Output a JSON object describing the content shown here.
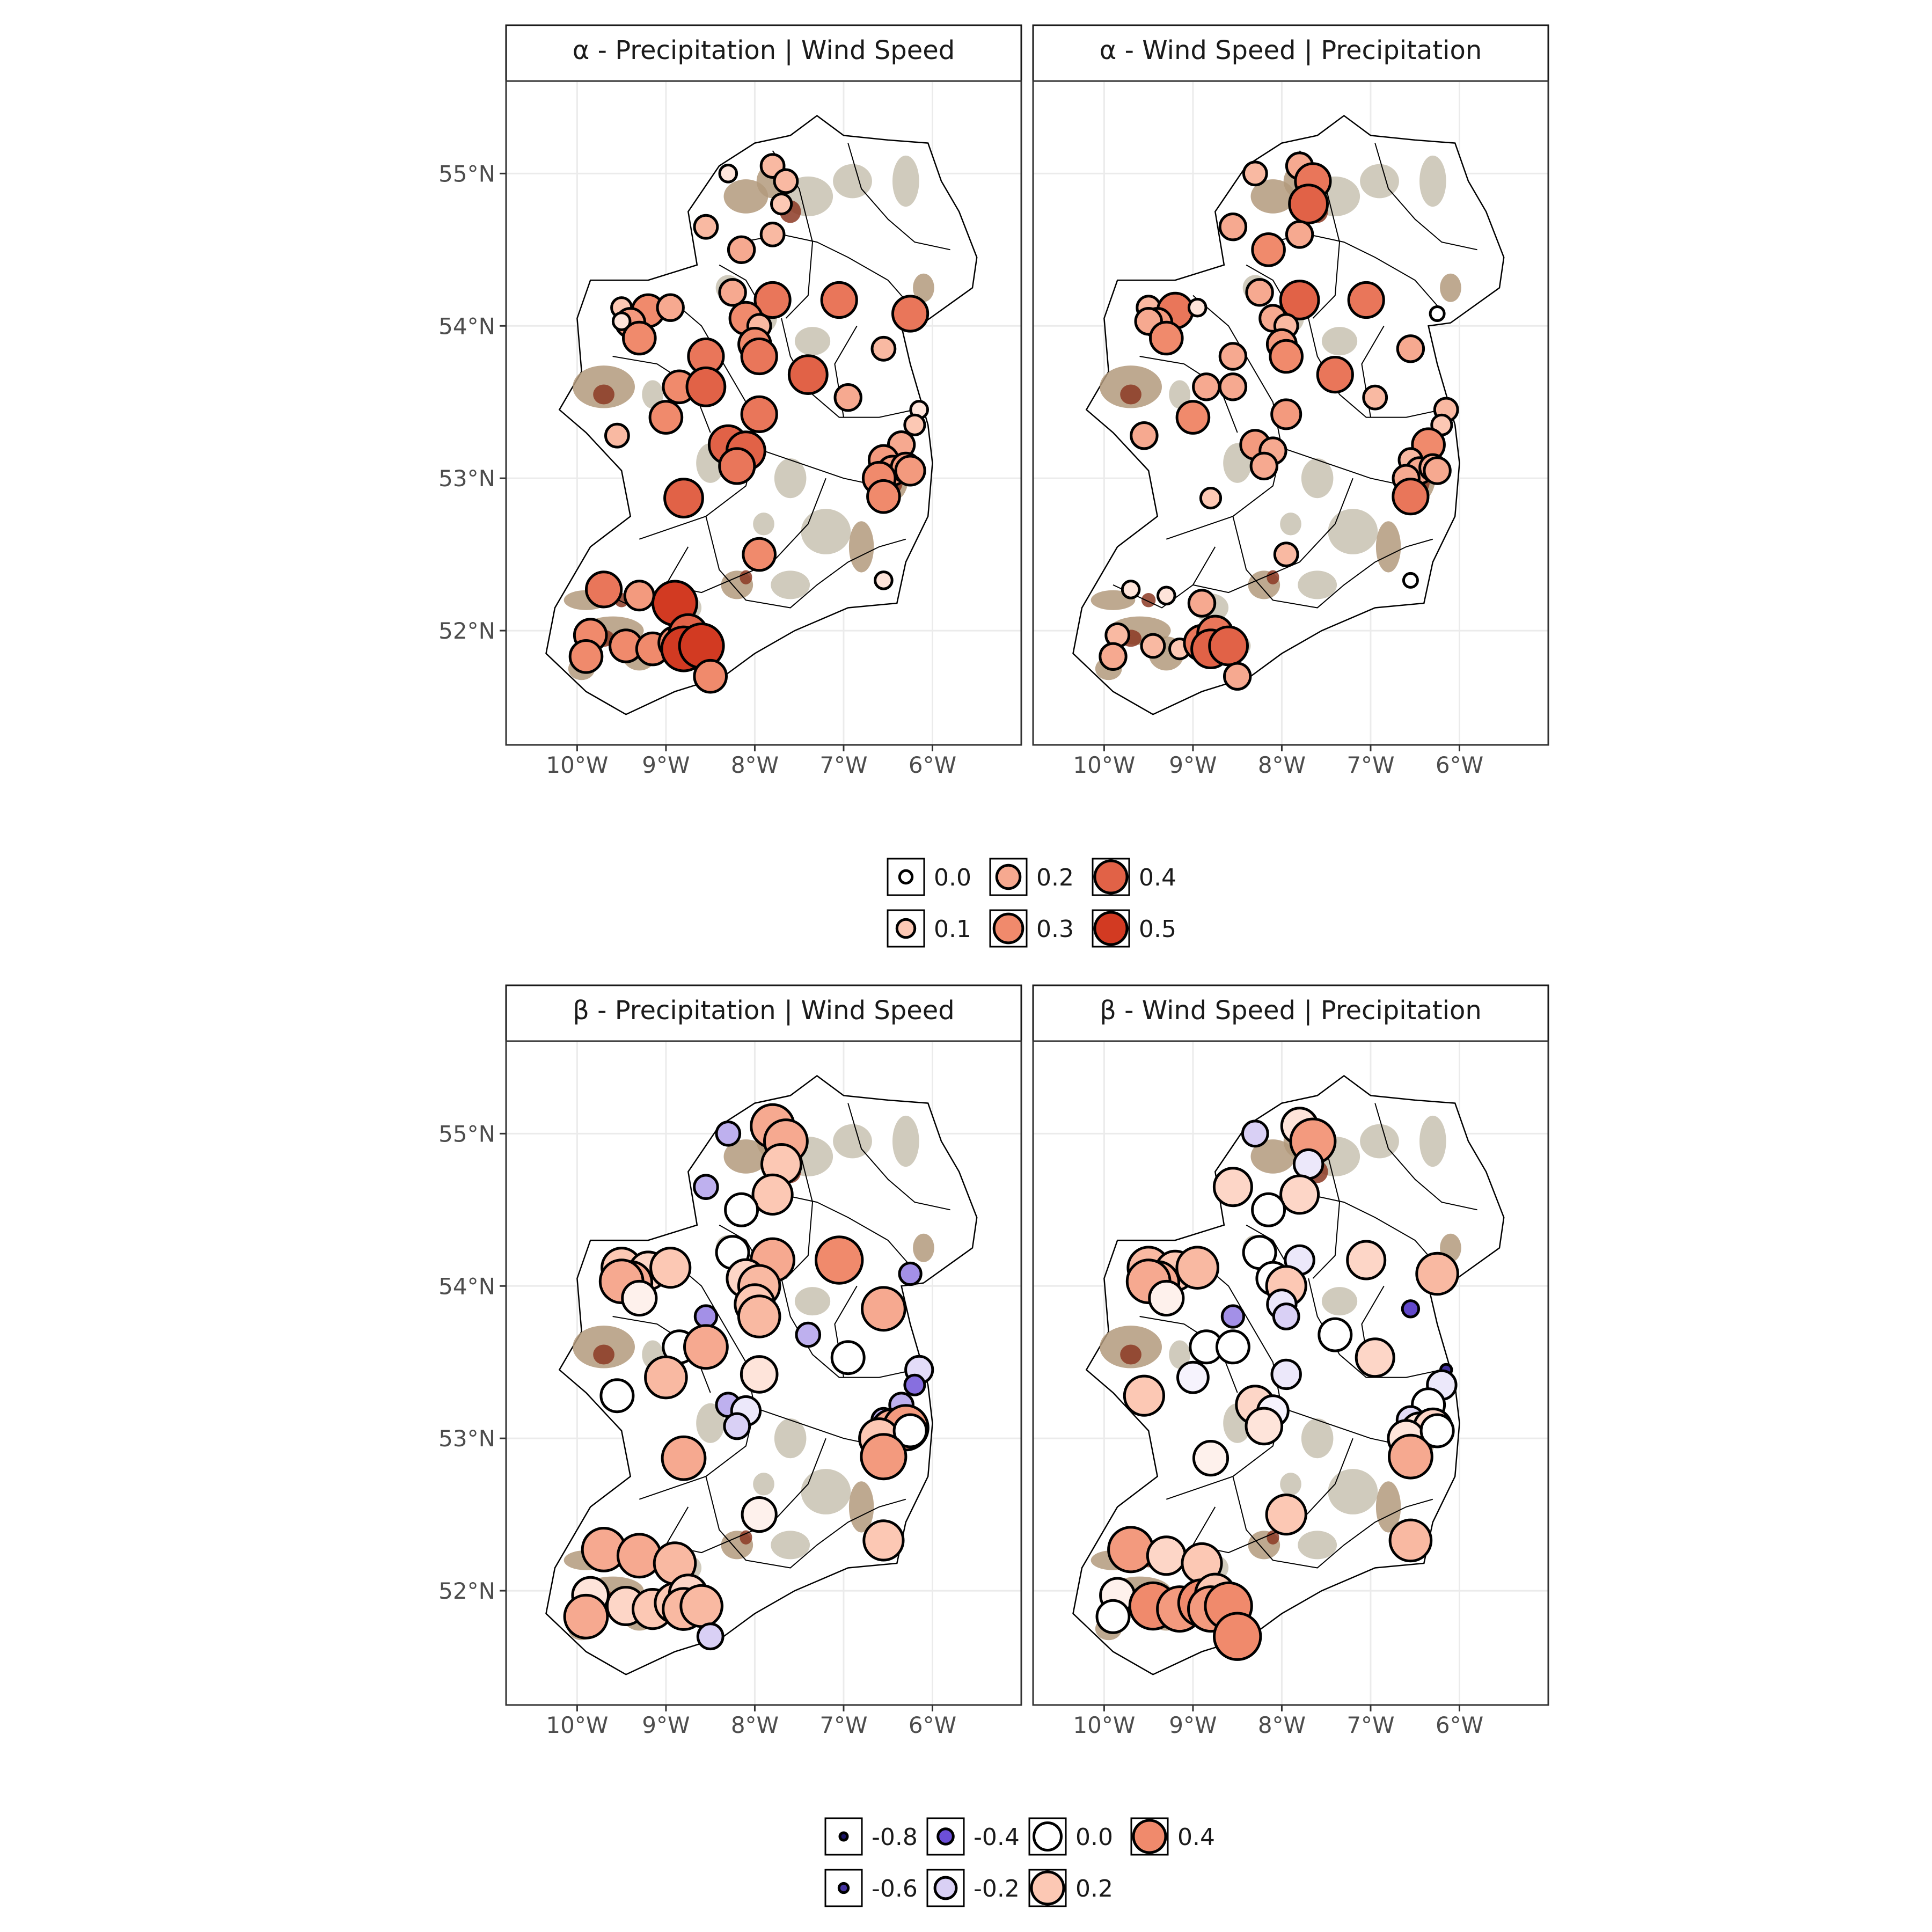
{
  "colors": {
    "neg_deep": "#1a1466",
    "neg_mid": "#6c4fd8",
    "neg_light": "#d9d0f5",
    "white": "#ffffff",
    "pos_light": "#fcc8b4",
    "pos_mid": "#f08a6c",
    "pos_deep": "#d23a22",
    "terrain_low": "#c8c2b2",
    "terrain_mid": "#b39a7c",
    "terrain_high": "#8c3a24",
    "grid": "#ebebeb",
    "outline": "#000000"
  },
  "x_ticks": [
    "10°W",
    "9°W",
    "8°W",
    "7°W",
    "6°W"
  ],
  "y_ticks": [
    "55°N",
    "54°N",
    "53°N",
    "52°N"
  ],
  "legend_alpha": {
    "labels": [
      "0.0",
      "0.1",
      "0.2",
      "0.3",
      "0.4",
      "0.5"
    ],
    "values": [
      0.0,
      0.1,
      0.2,
      0.3,
      0.4,
      0.5
    ]
  },
  "legend_beta": {
    "labels": [
      "-0.8",
      "-0.6",
      "-0.4",
      "-0.2",
      "0.0",
      "0.2",
      "0.4"
    ],
    "values": [
      -0.8,
      -0.6,
      -0.4,
      -0.2,
      0.0,
      0.2,
      0.4
    ]
  },
  "chart_data": [
    {
      "type": "scatter",
      "title": "α -  Precipitation | Wind Speed",
      "xlim": [
        -10.8,
        -5.0
      ],
      "ylim": [
        51.25,
        55.6
      ],
      "points": [
        [
          -8.3,
          55.0,
          0.05
        ],
        [
          -7.8,
          55.05,
          0.15
        ],
        [
          -7.65,
          54.95,
          0.15
        ],
        [
          -7.7,
          54.8,
          0.1
        ],
        [
          -8.55,
          54.65,
          0.15
        ],
        [
          -7.8,
          54.6,
          0.15
        ],
        [
          -8.15,
          54.5,
          0.2
        ],
        [
          -8.25,
          54.22,
          0.2
        ],
        [
          -7.8,
          54.17,
          0.35
        ],
        [
          -7.05,
          54.17,
          0.35
        ],
        [
          -6.25,
          54.08,
          0.35
        ],
        [
          -9.5,
          54.12,
          0.1
        ],
        [
          -9.2,
          54.1,
          0.3
        ],
        [
          -8.95,
          54.12,
          0.2
        ],
        [
          -9.4,
          54.02,
          0.25
        ],
        [
          -9.5,
          54.03,
          0.05
        ],
        [
          -9.3,
          53.92,
          0.3
        ],
        [
          -8.1,
          54.05,
          0.3
        ],
        [
          -7.95,
          54.0,
          0.15
        ],
        [
          -8.0,
          53.88,
          0.3
        ],
        [
          -7.95,
          53.8,
          0.35
        ],
        [
          -8.55,
          53.8,
          0.35
        ],
        [
          -6.55,
          53.85,
          0.15
        ],
        [
          -7.4,
          53.68,
          0.4
        ],
        [
          -8.85,
          53.6,
          0.3
        ],
        [
          -8.55,
          53.6,
          0.4
        ],
        [
          -6.95,
          53.53,
          0.2
        ],
        [
          -6.15,
          53.45,
          0.05
        ],
        [
          -7.95,
          53.42,
          0.35
        ],
        [
          -9.0,
          53.4,
          0.3
        ],
        [
          -6.2,
          53.35,
          0.1
        ],
        [
          -9.55,
          53.28,
          0.15
        ],
        [
          -8.3,
          53.22,
          0.4
        ],
        [
          -8.1,
          53.18,
          0.4
        ],
        [
          -6.35,
          53.22,
          0.2
        ],
        [
          -8.2,
          53.08,
          0.35
        ],
        [
          -6.55,
          53.12,
          0.25
        ],
        [
          -6.45,
          53.05,
          0.25
        ],
        [
          -6.3,
          53.07,
          0.25
        ],
        [
          -6.6,
          53.0,
          0.3
        ],
        [
          -6.25,
          53.05,
          0.25
        ],
        [
          -6.55,
          52.88,
          0.3
        ],
        [
          -8.8,
          52.87,
          0.4
        ],
        [
          -7.95,
          52.5,
          0.3
        ],
        [
          -6.55,
          52.33,
          0.05
        ],
        [
          -9.7,
          52.27,
          0.35
        ],
        [
          -9.3,
          52.23,
          0.25
        ],
        [
          -8.9,
          52.18,
          0.5
        ],
        [
          -9.85,
          51.97,
          0.3
        ],
        [
          -9.45,
          51.9,
          0.3
        ],
        [
          -9.15,
          51.88,
          0.3
        ],
        [
          -8.9,
          51.92,
          0.3
        ],
        [
          -8.75,
          51.98,
          0.4
        ],
        [
          -8.8,
          51.88,
          0.5
        ],
        [
          -8.6,
          51.9,
          0.5
        ],
        [
          -9.9,
          51.83,
          0.3
        ],
        [
          -8.5,
          51.7,
          0.3
        ]
      ]
    },
    {
      "type": "scatter",
      "title": "α -  Wind Speed | Precipitation",
      "xlim": [
        -10.8,
        -5.0
      ],
      "ylim": [
        51.25,
        55.6
      ],
      "points": [
        [
          -8.3,
          55.0,
          0.15
        ],
        [
          -7.8,
          55.05,
          0.2
        ],
        [
          -7.65,
          54.95,
          0.35
        ],
        [
          -7.7,
          54.8,
          0.4
        ],
        [
          -8.55,
          54.65,
          0.2
        ],
        [
          -7.8,
          54.6,
          0.2
        ],
        [
          -8.15,
          54.5,
          0.3
        ],
        [
          -8.25,
          54.22,
          0.2
        ],
        [
          -7.8,
          54.17,
          0.4
        ],
        [
          -7.05,
          54.17,
          0.35
        ],
        [
          -6.25,
          54.08,
          0.0
        ],
        [
          -9.5,
          54.12,
          0.15
        ],
        [
          -9.2,
          54.1,
          0.35
        ],
        [
          -8.95,
          54.12,
          0.05
        ],
        [
          -9.4,
          54.02,
          0.25
        ],
        [
          -9.5,
          54.03,
          0.2
        ],
        [
          -9.3,
          53.92,
          0.3
        ],
        [
          -8.1,
          54.05,
          0.2
        ],
        [
          -7.95,
          54.0,
          0.15
        ],
        [
          -8.0,
          53.88,
          0.25
        ],
        [
          -7.95,
          53.8,
          0.3
        ],
        [
          -8.55,
          53.8,
          0.2
        ],
        [
          -6.55,
          53.85,
          0.2
        ],
        [
          -7.4,
          53.68,
          0.35
        ],
        [
          -8.85,
          53.6,
          0.2
        ],
        [
          -8.55,
          53.6,
          0.2
        ],
        [
          -6.95,
          53.53,
          0.15
        ],
        [
          -6.15,
          53.45,
          0.15
        ],
        [
          -7.95,
          53.42,
          0.25
        ],
        [
          -9.0,
          53.4,
          0.3
        ],
        [
          -6.2,
          53.35,
          0.1
        ],
        [
          -9.55,
          53.28,
          0.2
        ],
        [
          -8.3,
          53.22,
          0.25
        ],
        [
          -8.1,
          53.18,
          0.2
        ],
        [
          -6.35,
          53.22,
          0.3
        ],
        [
          -8.2,
          53.08,
          0.2
        ],
        [
          -6.55,
          53.12,
          0.15
        ],
        [
          -6.45,
          53.05,
          0.2
        ],
        [
          -6.3,
          53.07,
          0.2
        ],
        [
          -6.6,
          53.0,
          0.2
        ],
        [
          -6.25,
          53.05,
          0.2
        ],
        [
          -6.55,
          52.88,
          0.35
        ],
        [
          -8.8,
          52.87,
          0.1
        ],
        [
          -7.95,
          52.5,
          0.15
        ],
        [
          -6.55,
          52.33,
          0.0
        ],
        [
          -9.7,
          52.27,
          0.05
        ],
        [
          -9.3,
          52.23,
          0.05
        ],
        [
          -8.9,
          52.18,
          0.2
        ],
        [
          -9.85,
          51.97,
          0.15
        ],
        [
          -9.45,
          51.9,
          0.15
        ],
        [
          -9.15,
          51.88,
          0.1
        ],
        [
          -8.9,
          51.92,
          0.35
        ],
        [
          -8.75,
          51.98,
          0.35
        ],
        [
          -8.8,
          51.88,
          0.4
        ],
        [
          -8.6,
          51.9,
          0.4
        ],
        [
          -9.9,
          51.83,
          0.2
        ],
        [
          -8.5,
          51.7,
          0.2
        ]
      ]
    },
    {
      "type": "scatter",
      "title": "β -  Precipitation | Wind Speed",
      "xlim": [
        -10.8,
        -5.0
      ],
      "ylim": [
        51.25,
        55.6
      ],
      "points": [
        [
          -8.3,
          55.0,
          -0.25
        ],
        [
          -7.8,
          55.05,
          0.3
        ],
        [
          -7.65,
          54.95,
          0.3
        ],
        [
          -7.7,
          54.8,
          0.2
        ],
        [
          -8.55,
          54.65,
          -0.25
        ],
        [
          -7.8,
          54.6,
          0.2
        ],
        [
          -8.15,
          54.5,
          0.0
        ],
        [
          -8.25,
          54.22,
          0.0
        ],
        [
          -7.8,
          54.17,
          0.3
        ],
        [
          -7.05,
          54.17,
          0.4
        ],
        [
          -6.25,
          54.08,
          -0.3
        ],
        [
          -9.5,
          54.12,
          0.2
        ],
        [
          -9.2,
          54.1,
          0.15
        ],
        [
          -8.95,
          54.12,
          0.2
        ],
        [
          -9.4,
          54.02,
          0.3
        ],
        [
          -9.5,
          54.03,
          0.3
        ],
        [
          -9.3,
          53.92,
          0.05
        ],
        [
          -8.1,
          54.05,
          0.15
        ],
        [
          -7.95,
          54.0,
          0.25
        ],
        [
          -8.0,
          53.88,
          0.2
        ],
        [
          -7.95,
          53.8,
          0.25
        ],
        [
          -8.55,
          53.8,
          -0.3
        ],
        [
          -6.55,
          53.85,
          0.3
        ],
        [
          -7.4,
          53.68,
          -0.25
        ],
        [
          -8.85,
          53.6,
          0.0
        ],
        [
          -8.55,
          53.6,
          0.3
        ],
        [
          -6.95,
          53.53,
          0.0
        ],
        [
          -6.15,
          53.45,
          -0.15
        ],
        [
          -7.95,
          53.42,
          0.1
        ],
        [
          -9.0,
          53.4,
          0.25
        ],
        [
          -6.2,
          53.35,
          -0.35
        ],
        [
          -9.55,
          53.28,
          0.0
        ],
        [
          -8.3,
          53.22,
          -0.25
        ],
        [
          -8.1,
          53.18,
          -0.1
        ],
        [
          -6.35,
          53.22,
          -0.25
        ],
        [
          -8.2,
          53.08,
          -0.2
        ],
        [
          -6.55,
          53.12,
          -0.25
        ],
        [
          -6.45,
          53.05,
          0.3
        ],
        [
          -6.3,
          53.07,
          0.35
        ],
        [
          -6.6,
          53.0,
          0.2
        ],
        [
          -6.25,
          53.05,
          0.0
        ],
        [
          -6.55,
          52.88,
          0.35
        ],
        [
          -8.8,
          52.87,
          0.3
        ],
        [
          -7.95,
          52.5,
          0.05
        ],
        [
          -6.55,
          52.33,
          0.2
        ],
        [
          -9.7,
          52.27,
          0.3
        ],
        [
          -9.3,
          52.23,
          0.3
        ],
        [
          -8.9,
          52.18,
          0.25
        ],
        [
          -9.85,
          51.97,
          0.1
        ],
        [
          -9.45,
          51.9,
          0.15
        ],
        [
          -9.15,
          51.88,
          0.2
        ],
        [
          -8.9,
          51.92,
          0.2
        ],
        [
          -8.75,
          51.98,
          0.15
        ],
        [
          -8.8,
          51.88,
          0.25
        ],
        [
          -8.6,
          51.9,
          0.25
        ],
        [
          -9.9,
          51.83,
          0.3
        ],
        [
          -8.5,
          51.7,
          -0.2
        ]
      ]
    },
    {
      "type": "scatter",
      "title": "β -  Wind Speed | Precipitation",
      "xlim": [
        -10.8,
        -5.0
      ],
      "ylim": [
        51.25,
        55.6
      ],
      "points": [
        [
          -8.3,
          55.0,
          -0.2
        ],
        [
          -7.8,
          55.05,
          0.1
        ],
        [
          -7.65,
          54.95,
          0.35
        ],
        [
          -7.7,
          54.8,
          -0.1
        ],
        [
          -8.55,
          54.65,
          0.15
        ],
        [
          -7.8,
          54.6,
          0.15
        ],
        [
          -8.15,
          54.5,
          0.0
        ],
        [
          -8.25,
          54.22,
          0.0
        ],
        [
          -7.8,
          54.17,
          -0.1
        ],
        [
          -7.05,
          54.17,
          0.15
        ],
        [
          -6.25,
          54.08,
          0.25
        ],
        [
          -9.5,
          54.12,
          0.25
        ],
        [
          -9.2,
          54.1,
          0.2
        ],
        [
          -8.95,
          54.12,
          0.25
        ],
        [
          -9.4,
          54.02,
          0.3
        ],
        [
          -9.5,
          54.03,
          0.3
        ],
        [
          -9.3,
          53.92,
          0.05
        ],
        [
          -8.1,
          54.05,
          0.0
        ],
        [
          -7.95,
          54.0,
          0.2
        ],
        [
          -8.0,
          53.88,
          -0.1
        ],
        [
          -7.95,
          53.8,
          -0.2
        ],
        [
          -8.55,
          53.8,
          -0.3
        ],
        [
          -6.55,
          53.85,
          -0.45
        ],
        [
          -7.4,
          53.68,
          0.0
        ],
        [
          -8.85,
          53.6,
          0.0
        ],
        [
          -8.55,
          53.6,
          0.0
        ],
        [
          -6.95,
          53.53,
          0.15
        ],
        [
          -6.15,
          53.45,
          -0.6
        ],
        [
          -7.95,
          53.42,
          -0.1
        ],
        [
          -9.0,
          53.4,
          -0.05
        ],
        [
          -6.2,
          53.35,
          -0.1
        ],
        [
          -9.55,
          53.28,
          0.2
        ],
        [
          -8.3,
          53.22,
          0.15
        ],
        [
          -8.1,
          53.18,
          -0.05
        ],
        [
          -6.35,
          53.22,
          0.0
        ],
        [
          -8.2,
          53.08,
          0.1
        ],
        [
          -6.55,
          53.12,
          -0.15
        ],
        [
          -6.45,
          53.05,
          0.1
        ],
        [
          -6.3,
          53.07,
          0.15
        ],
        [
          -6.6,
          53.0,
          0.1
        ],
        [
          -6.25,
          53.05,
          0.0
        ],
        [
          -6.55,
          52.88,
          0.3
        ],
        [
          -8.8,
          52.87,
          0.05
        ],
        [
          -7.95,
          52.5,
          0.2
        ],
        [
          -6.55,
          52.33,
          0.25
        ],
        [
          -9.7,
          52.27,
          0.35
        ],
        [
          -9.3,
          52.23,
          0.15
        ],
        [
          -8.9,
          52.18,
          0.2
        ],
        [
          -9.85,
          51.97,
          0.05
        ],
        [
          -9.45,
          51.9,
          0.4
        ],
        [
          -9.15,
          51.88,
          0.35
        ],
        [
          -8.9,
          51.92,
          0.4
        ],
        [
          -8.75,
          51.98,
          0.2
        ],
        [
          -8.8,
          51.88,
          0.35
        ],
        [
          -8.6,
          51.9,
          0.4
        ],
        [
          -9.9,
          51.83,
          0.0
        ],
        [
          -8.5,
          51.7,
          0.4
        ]
      ]
    }
  ]
}
